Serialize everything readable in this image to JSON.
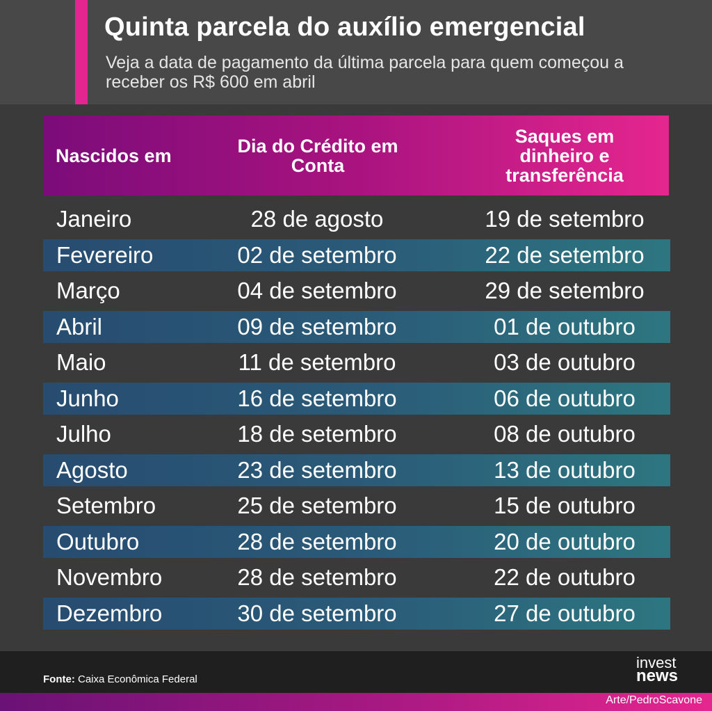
{
  "header": {
    "title": "Quinta parcela do auxílio emergencial",
    "subtitle": "Veja a data de pagamento da última parcela para quem começou a receber os R$ 600 em abril"
  },
  "table": {
    "headers": [
      "Nascidos em",
      "Dia do Crédito em Conta",
      "Saques em dinheiro e transferência"
    ],
    "rows": [
      {
        "month": "Janeiro",
        "credit": "28 de agosto",
        "withdraw": "19 de setembro"
      },
      {
        "month": "Fevereiro",
        "credit": "02 de setembro",
        "withdraw": "22 de setembro"
      },
      {
        "month": "Março",
        "credit": "04 de setembro",
        "withdraw": "29 de setembro"
      },
      {
        "month": "Abril",
        "credit": "09 de setembro",
        "withdraw": "01 de outubro"
      },
      {
        "month": "Maio",
        "credit": "11 de setembro",
        "withdraw": "03 de outubro"
      },
      {
        "month": "Junho",
        "credit": "16 de setembro",
        "withdraw": "06 de outubro"
      },
      {
        "month": "Julho",
        "credit": "18 de setembro",
        "withdraw": "08 de outubro"
      },
      {
        "month": "Agosto",
        "credit": "23 de setembro",
        "withdraw": "13 de outubro"
      },
      {
        "month": "Setembro",
        "credit": "25 de setembro",
        "withdraw": "15 de outubro"
      },
      {
        "month": "Outubro",
        "credit": "28 de setembro",
        "withdraw": "20 de outubro"
      },
      {
        "month": "Novembro",
        "credit": "28 de setembro",
        "withdraw": "22 de outubro"
      },
      {
        "month": "Dezembro",
        "credit": "30 de setembro",
        "withdraw": "27 de outubro"
      }
    ]
  },
  "footer": {
    "source_label": "Fonte:",
    "source_text": "Caixa Econômica Federal",
    "logo_top": "invest",
    "logo_bottom": "news",
    "credit": "Arte/PedroScavone"
  },
  "colors": {
    "accent": "#e3268f",
    "header_gradient_start": "#7b0c7a",
    "stripe_start": "#274c70",
    "stripe_end": "#2d7680"
  }
}
